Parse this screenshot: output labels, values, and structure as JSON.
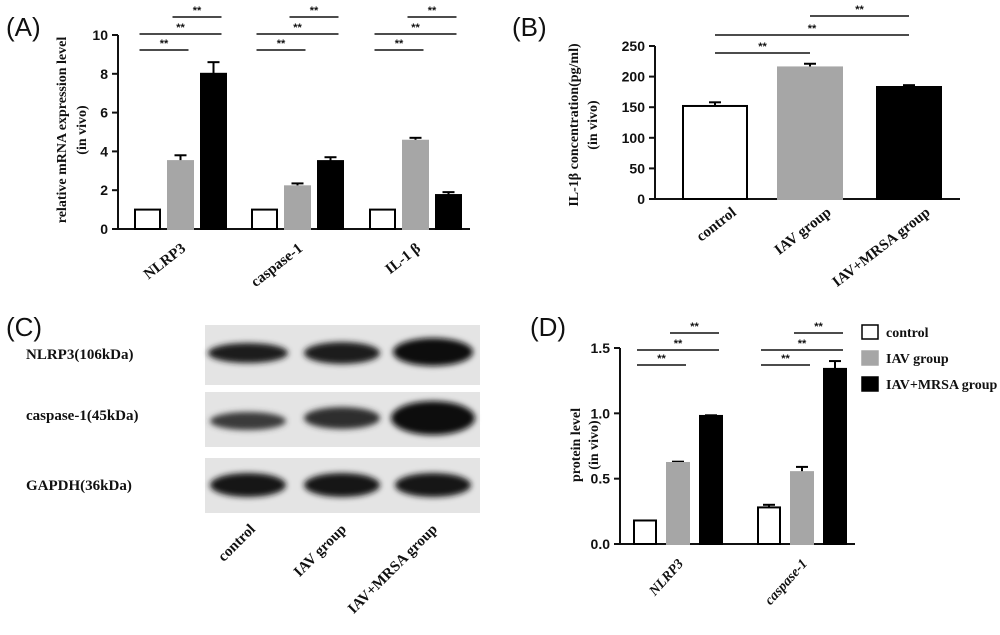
{
  "colors": {
    "control": "#ffffff",
    "iav": "#a6a6a6",
    "combo": "#000000",
    "edge": "#000000"
  },
  "chart_data": [
    {
      "panel": "(A)",
      "type": "bar",
      "ylabel": [
        "relative mRNA expression level",
        "(in vivo)"
      ],
      "ylim": [
        0,
        10
      ],
      "yticks": [
        "0",
        "2",
        "4",
        "6",
        "8",
        "10"
      ],
      "categories": [
        "NLRP3",
        "caspase-1",
        "IL-1 β"
      ],
      "series": [
        {
          "values": [
            1.0,
            1.0,
            1.0
          ],
          "errors": [
            0,
            0,
            0
          ]
        },
        {
          "values": [
            3.5,
            2.2,
            4.55
          ],
          "errors": [
            0.3,
            0.15,
            0.15
          ]
        },
        {
          "values": [
            8.0,
            3.5,
            1.75
          ],
          "errors": [
            0.6,
            0.2,
            0.15
          ]
        }
      ],
      "significance": [
        {
          "group": 0,
          "pair": [
            0,
            1
          ],
          "label": "**"
        },
        {
          "group": 0,
          "pair": [
            0,
            2
          ],
          "label": "**"
        },
        {
          "group": 0,
          "pair": [
            1,
            2
          ],
          "label": "**"
        },
        {
          "group": 1,
          "pair": [
            0,
            1
          ],
          "label": "**"
        },
        {
          "group": 1,
          "pair": [
            0,
            2
          ],
          "label": "**"
        },
        {
          "group": 1,
          "pair": [
            1,
            2
          ],
          "label": "**"
        },
        {
          "group": 2,
          "pair": [
            0,
            1
          ],
          "label": "**"
        },
        {
          "group": 2,
          "pair": [
            0,
            2
          ],
          "label": "**"
        },
        {
          "group": 2,
          "pair": [
            1,
            2
          ],
          "label": "**"
        }
      ]
    },
    {
      "panel": "(B)",
      "type": "bar",
      "ylabel": [
        "IL-1β concentration(pg/ml)",
        "(in vivo)"
      ],
      "ylim": [
        0,
        250
      ],
      "yticks": [
        "0",
        "50",
        "100",
        "150",
        "200",
        "250"
      ],
      "categories": [
        "control",
        "IAV group",
        "IAV+MRSA group"
      ],
      "values": [
        152,
        215,
        183
      ],
      "errors": [
        6,
        6,
        3
      ],
      "significance": [
        {
          "pair": [
            0,
            1
          ],
          "label": "**"
        },
        {
          "pair": [
            0,
            2
          ],
          "label": "**"
        },
        {
          "pair": [
            1,
            2
          ],
          "label": "**"
        }
      ]
    },
    {
      "panel": "(D)",
      "type": "bar",
      "ylabel": [
        "protein level",
        "(in vivo)"
      ],
      "ylim": [
        0,
        1.5
      ],
      "yticks": [
        "0.0",
        "0.5",
        "1.0",
        "1.5"
      ],
      "categories": [
        "NLRP3",
        "caspase-1"
      ],
      "legend": [
        "control",
        "IAV group",
        "IAV+MRSA group"
      ],
      "legend_position": "top-right",
      "series": [
        {
          "values": [
            0.18,
            0.28
          ],
          "errors": [
            0,
            0.02
          ]
        },
        {
          "values": [
            0.62,
            0.55
          ],
          "errors": [
            0.01,
            0.04
          ]
        },
        {
          "values": [
            0.98,
            1.34
          ],
          "errors": [
            0.005,
            0.06
          ]
        }
      ],
      "significance": [
        {
          "group": 0,
          "pair": [
            0,
            1
          ],
          "label": "**"
        },
        {
          "group": 0,
          "pair": [
            0,
            2
          ],
          "label": "**"
        },
        {
          "group": 0,
          "pair": [
            1,
            2
          ],
          "label": "**"
        },
        {
          "group": 1,
          "pair": [
            0,
            1
          ],
          "label": "**"
        },
        {
          "group": 1,
          "pair": [
            0,
            2
          ],
          "label": "**"
        },
        {
          "group": 1,
          "pair": [
            1,
            2
          ],
          "label": "**"
        }
      ]
    }
  ],
  "blot": {
    "panel": "(C)",
    "rows": [
      "NLRP3(106kDa)",
      "caspase-1(45kDa)",
      "GAPDH(36kDa)"
    ],
    "lanes": [
      "control",
      "IAV group",
      "IAV+MRSA group"
    ]
  }
}
